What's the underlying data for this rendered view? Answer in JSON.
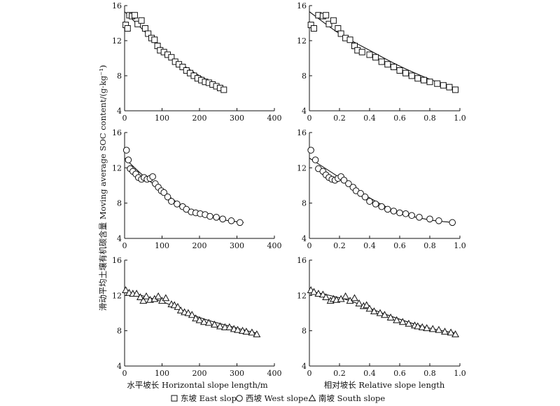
{
  "figure": {
    "ylabel": "滑动平均土壤有机碳含量 Moving average SOC content/(g·kg⁻¹)",
    "xlabel_left": "水平坡长 Horizontal slope length/m",
    "xlabel_right": "相对坡长 Relative slope length"
  },
  "legend": [
    {
      "key": "east",
      "label": "东坡 East slope",
      "marker": "square"
    },
    {
      "key": "west",
      "label": "西坡 West slope",
      "marker": "circle"
    },
    {
      "key": "south",
      "label": "南坡 South slope",
      "marker": "triangle"
    }
  ],
  "colors": {
    "ink": "#111111",
    "marker_fill": "#ffffff"
  },
  "chart_data": [
    {
      "type": "scatter",
      "panel": "east-horizontal",
      "marker": "square",
      "xlim": [
        0,
        400
      ],
      "ylim": [
        4,
        16
      ],
      "xticks": [
        0,
        100,
        200,
        300,
        400
      ],
      "yticks": [
        4,
        8,
        12,
        16
      ],
      "x": [
        3,
        8,
        13,
        20,
        27,
        35,
        45,
        55,
        63,
        72,
        80,
        88,
        95,
        105,
        115,
        125,
        135,
        145,
        155,
        165,
        175,
        185,
        195,
        205,
        215,
        225,
        235,
        245,
        255,
        265
      ],
      "y": [
        13.8,
        13.4,
        14.9,
        14.8,
        14.9,
        13.9,
        14.3,
        13.4,
        12.8,
        12.3,
        12.1,
        11.4,
        10.9,
        10.7,
        10.4,
        10.1,
        9.6,
        9.3,
        9.0,
        8.6,
        8.3,
        8.0,
        7.7,
        7.5,
        7.3,
        7.2,
        7.0,
        6.8,
        6.6,
        6.4
      ],
      "fit": {
        "x": [
          0,
          50,
          100,
          150,
          200,
          268
        ],
        "y": [
          15.3,
          13.2,
          11.1,
          9.4,
          8.0,
          6.5
        ]
      }
    },
    {
      "type": "scatter",
      "panel": "east-relative",
      "marker": "square",
      "xlim": [
        0,
        1.0
      ],
      "ylim": [
        4,
        16
      ],
      "xticks": [
        "0",
        "0.2",
        "0.4",
        "0.6",
        "0.8",
        "1.0"
      ],
      "yticks": [
        4,
        8,
        12,
        16
      ],
      "x": [
        0.01,
        0.03,
        0.06,
        0.09,
        0.11,
        0.13,
        0.16,
        0.19,
        0.21,
        0.24,
        0.27,
        0.3,
        0.32,
        0.35,
        0.4,
        0.44,
        0.48,
        0.52,
        0.56,
        0.6,
        0.64,
        0.68,
        0.72,
        0.76,
        0.8,
        0.85,
        0.89,
        0.93,
        0.97
      ],
      "y": [
        13.8,
        13.4,
        14.9,
        14.8,
        14.9,
        13.9,
        14.3,
        13.4,
        12.8,
        12.3,
        12.1,
        11.4,
        10.9,
        10.7,
        10.4,
        10.1,
        9.6,
        9.3,
        9.0,
        8.6,
        8.3,
        8.0,
        7.7,
        7.5,
        7.3,
        7.1,
        6.9,
        6.7,
        6.4
      ],
      "fit": {
        "x": [
          0,
          0.2,
          0.4,
          0.6,
          0.8,
          0.98
        ],
        "y": [
          15.3,
          12.8,
          10.9,
          9.1,
          7.6,
          6.5
        ]
      }
    },
    {
      "type": "scatter",
      "panel": "west-horizontal",
      "marker": "circle",
      "xlim": [
        0,
        400
      ],
      "ylim": [
        4,
        16
      ],
      "xticks": [
        0,
        100,
        200,
        300,
        400
      ],
      "yticks": [
        4,
        8,
        12,
        16
      ],
      "x": [
        5,
        10,
        15,
        22,
        30,
        37,
        45,
        52,
        60,
        68,
        75,
        82,
        90,
        98,
        105,
        115,
        125,
        140,
        155,
        165,
        178,
        190,
        202,
        215,
        228,
        245,
        262,
        285,
        308
      ],
      "y": [
        14.0,
        12.9,
        11.9,
        11.6,
        11.3,
        10.9,
        10.7,
        10.9,
        10.7,
        10.8,
        11.0,
        10.2,
        9.8,
        9.4,
        9.2,
        8.7,
        8.2,
        7.9,
        7.6,
        7.3,
        7.0,
        6.9,
        6.8,
        6.7,
        6.5,
        6.4,
        6.2,
        6.0,
        5.8
      ],
      "fit": {
        "x": [
          0,
          50,
          100,
          150,
          200,
          250,
          318
        ],
        "y": [
          13.1,
          11.1,
          9.4,
          7.8,
          6.9,
          6.2,
          5.8
        ]
      }
    },
    {
      "type": "scatter",
      "panel": "west-relative",
      "marker": "circle",
      "xlim": [
        0,
        1.0
      ],
      "ylim": [
        4,
        16
      ],
      "xticks": [
        "0",
        "0.2",
        "0.4",
        "0.6",
        "0.8",
        "1.0"
      ],
      "yticks": [
        4,
        8,
        12,
        16
      ],
      "x": [
        0.01,
        0.04,
        0.06,
        0.09,
        0.11,
        0.13,
        0.15,
        0.17,
        0.19,
        0.21,
        0.23,
        0.26,
        0.29,
        0.31,
        0.34,
        0.37,
        0.4,
        0.44,
        0.48,
        0.52,
        0.56,
        0.6,
        0.64,
        0.68,
        0.73,
        0.8,
        0.86,
        0.95
      ],
      "y": [
        14.0,
        12.9,
        11.9,
        11.6,
        11.2,
        10.9,
        10.7,
        10.6,
        10.8,
        11.0,
        10.6,
        10.2,
        9.8,
        9.4,
        9.1,
        8.7,
        8.2,
        7.9,
        7.6,
        7.3,
        7.1,
        6.9,
        6.8,
        6.6,
        6.4,
        6.2,
        6.0,
        5.8
      ],
      "fit": {
        "x": [
          0,
          0.2,
          0.4,
          0.6,
          0.8,
          0.96
        ],
        "y": [
          13.1,
          10.9,
          8.6,
          6.9,
          6.1,
          5.8
        ]
      }
    },
    {
      "type": "scatter",
      "panel": "south-horizontal",
      "marker": "triangle",
      "xlim": [
        0,
        400
      ],
      "ylim": [
        4,
        16
      ],
      "xticks": [
        0,
        100,
        200,
        300,
        400
      ],
      "yticks": [
        4,
        8,
        12,
        16
      ],
      "x": [
        3,
        12,
        22,
        32,
        42,
        50,
        58,
        68,
        80,
        90,
        100,
        110,
        125,
        133,
        142,
        150,
        160,
        170,
        180,
        190,
        200,
        212,
        225,
        240,
        255,
        268,
        280,
        292,
        302,
        315,
        325,
        340,
        353
      ],
      "y": [
        12.6,
        12.3,
        12.2,
        12.2,
        11.8,
        11.4,
        11.9,
        11.5,
        11.6,
        11.9,
        11.4,
        11.7,
        11.0,
        10.9,
        10.7,
        10.3,
        10.1,
        10.0,
        9.8,
        9.4,
        9.2,
        9.0,
        8.9,
        8.7,
        8.5,
        8.4,
        8.4,
        8.2,
        8.1,
        8.0,
        7.9,
        7.8,
        7.6
      ],
      "fit": {
        "x": [
          0,
          100,
          200,
          300,
          355
        ],
        "y": [
          12.5,
          11.3,
          9.5,
          8.3,
          7.7
        ]
      }
    },
    {
      "type": "scatter",
      "panel": "south-relative",
      "marker": "triangle",
      "xlim": [
        0,
        1.0
      ],
      "ylim": [
        4,
        16
      ],
      "xticks": [
        "0",
        "0.2",
        "0.4",
        "0.6",
        "0.8",
        "1.0"
      ],
      "yticks": [
        4,
        8,
        12,
        16
      ],
      "x": [
        0.01,
        0.03,
        0.06,
        0.09,
        0.11,
        0.14,
        0.16,
        0.18,
        0.21,
        0.24,
        0.27,
        0.3,
        0.33,
        0.36,
        0.38,
        0.4,
        0.43,
        0.47,
        0.5,
        0.54,
        0.58,
        0.62,
        0.66,
        0.7,
        0.72,
        0.75,
        0.78,
        0.82,
        0.86,
        0.9,
        0.94,
        0.97
      ],
      "y": [
        12.6,
        12.4,
        12.2,
        12.1,
        11.8,
        11.4,
        11.6,
        11.5,
        11.6,
        11.9,
        11.4,
        11.7,
        11.1,
        10.8,
        10.9,
        10.5,
        10.2,
        10.0,
        9.8,
        9.5,
        9.2,
        9.0,
        8.8,
        8.6,
        8.5,
        8.4,
        8.3,
        8.2,
        8.1,
        7.9,
        7.8,
        7.6
      ],
      "fit": {
        "x": [
          0,
          0.25,
          0.5,
          0.75,
          0.98
        ],
        "y": [
          12.5,
          11.5,
          9.9,
          8.5,
          7.7
        ]
      }
    }
  ]
}
